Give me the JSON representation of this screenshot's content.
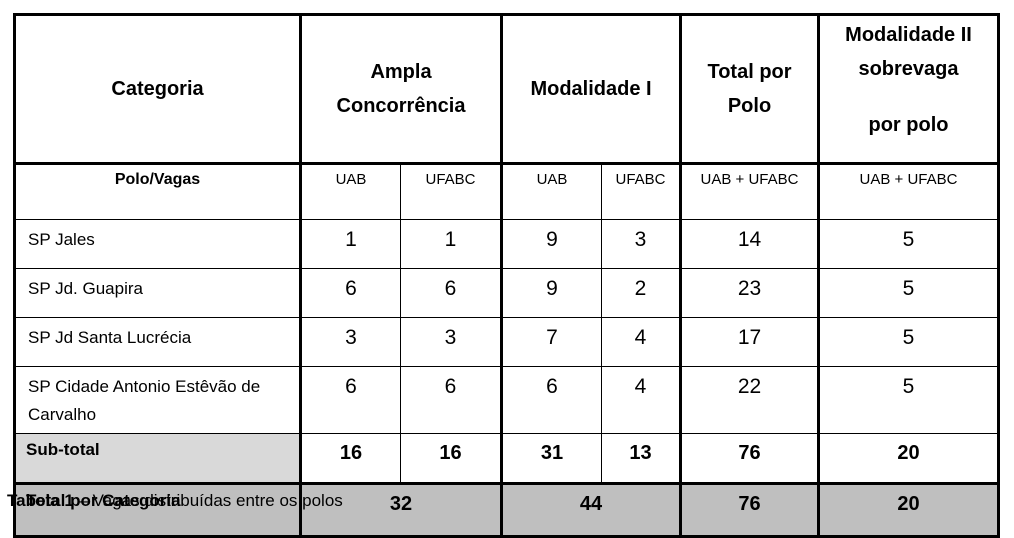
{
  "table": {
    "header": {
      "categoria": "Categoria",
      "ampla_line1": "Ampla",
      "ampla_line2": "Concorrência",
      "modalidade1": "Modalidade I",
      "total_polo_line1": "Total por",
      "total_polo_line2": "Polo",
      "modalidade2_line1": "Modalidade II",
      "modalidade2_line2": "sobrevaga",
      "modalidade2_line3": "por polo"
    },
    "subheader": {
      "polo_vagas": "Polo/Vagas",
      "ampla_uab": "UAB",
      "ampla_ufabc": "UFABC",
      "mod1_uab": "UAB",
      "mod1_ufabc": "UFABC",
      "total_polo": "UAB + UFABC",
      "modalidade2": "UAB + UFABC"
    },
    "rows": [
      {
        "polo": "SP Jales",
        "ampla_uab": "1",
        "ampla_ufabc": "1",
        "mod1_uab": "9",
        "mod1_ufabc": "3",
        "total": "14",
        "mod2": "5"
      },
      {
        "polo": "SP Jd. Guapira",
        "ampla_uab": "6",
        "ampla_ufabc": "6",
        "mod1_uab": "9",
        "mod1_ufabc": "2",
        "total": "23",
        "mod2": "5"
      },
      {
        "polo": "SP Jd Santa Lucrécia",
        "ampla_uab": "3",
        "ampla_ufabc": "3",
        "mod1_uab": "7",
        "mod1_ufabc": "4",
        "total": "17",
        "mod2": "5"
      },
      {
        "polo": "SP Cidade Antonio Estêvão de Carvalho",
        "ampla_uab": "6",
        "ampla_ufabc": "6",
        "mod1_uab": "6",
        "mod1_ufabc": "4",
        "total": "22",
        "mod2": "5"
      }
    ],
    "subtotal": {
      "label": "Sub-total",
      "ampla_uab": "16",
      "ampla_ufabc": "16",
      "mod1_uab": "31",
      "mod1_ufabc": "13",
      "total": "76",
      "mod2": "20"
    },
    "total_categoria": {
      "label": "Total por Categoria",
      "ampla": "32",
      "mod1": "44",
      "total": "76",
      "mod2": "20"
    }
  },
  "caption": {
    "label": "Tabela 1",
    "text": " – Vagas distribuídas entre os polos"
  }
}
